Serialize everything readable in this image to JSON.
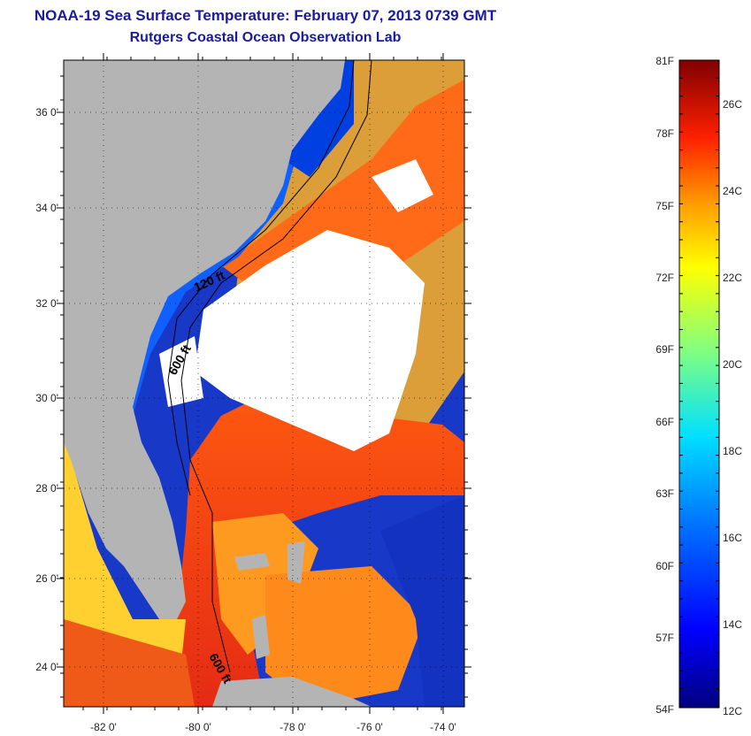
{
  "header": {
    "title": "NOAA-19 Sea Surface Temperature:  February 07, 2013 0739 GMT",
    "subtitle": "Rutgers Coastal Ocean Observation Lab"
  },
  "map": {
    "lat_ticks": [
      "36 0'",
      "34 0'",
      "32 0'",
      "30 0'",
      "28 0'",
      "26 0'",
      "24 0'"
    ],
    "lon_ticks": [
      "-82 0'",
      "-80 0'",
      "-78 0'",
      "-76 0'",
      "-74 0'"
    ],
    "contour_labels": [
      "120 ft",
      "600 ft",
      "600 ft"
    ]
  },
  "colorbar": {
    "f_labels": [
      "81F",
      "78F",
      "75F",
      "72F",
      "69F",
      "66F",
      "63F",
      "60F",
      "57F",
      "54F"
    ],
    "c_labels": [
      "26C",
      "24C",
      "22C",
      "20C",
      "18C",
      "16C",
      "14C",
      "12C"
    ]
  },
  "colors": {
    "title": "#1a1aa0",
    "land": "#b4b4b4",
    "clouds": "#ffffff"
  }
}
